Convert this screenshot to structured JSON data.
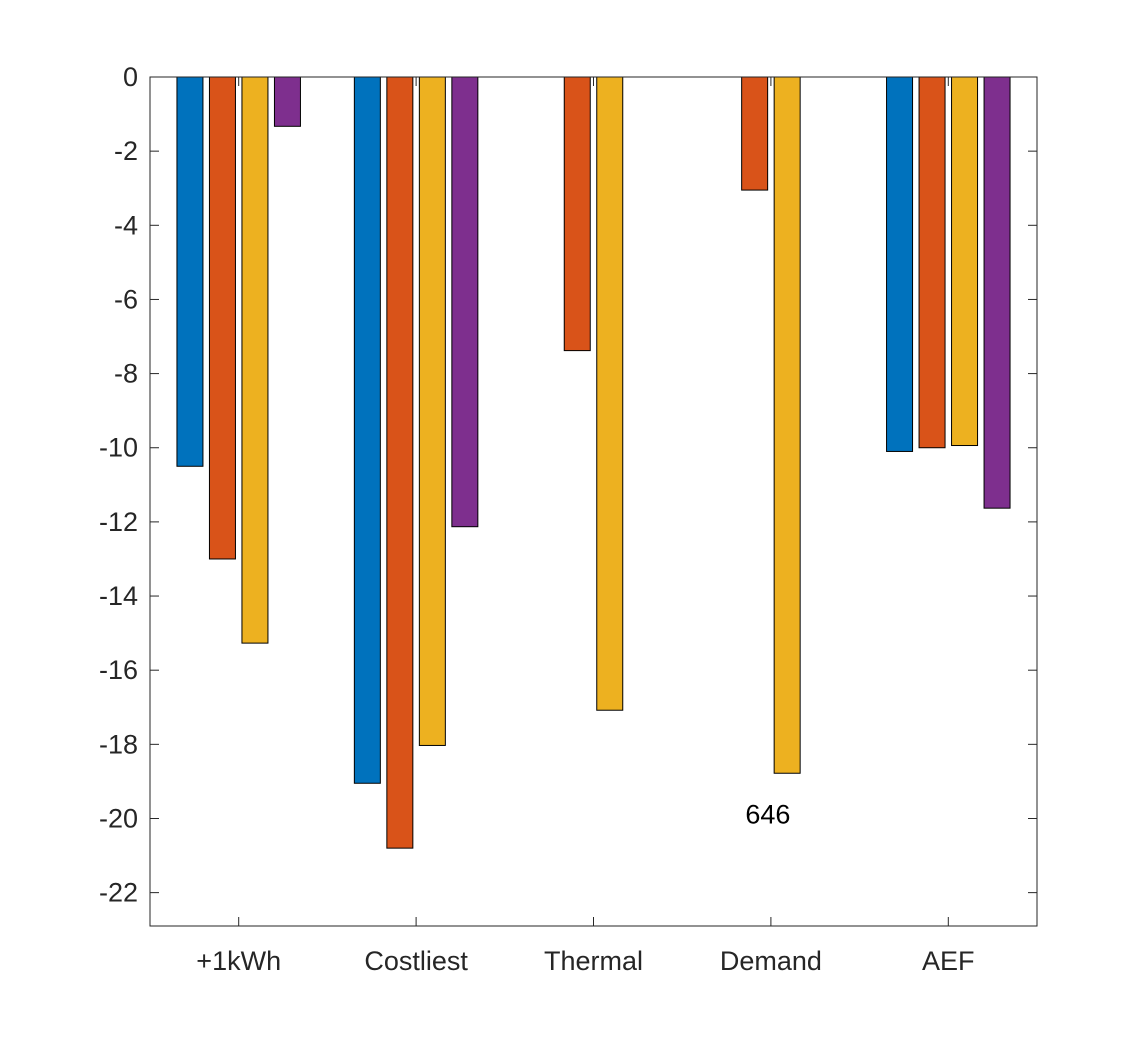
{
  "chart_data": {
    "type": "bar",
    "categories": [
      "+1kWh",
      "Costliest",
      "Thermal",
      "Demand",
      "AEF"
    ],
    "series": [
      {
        "color": "#0072BD",
        "values": [
          -10.5,
          -19.05,
          null,
          null,
          -10.1
        ]
      },
      {
        "color": "#D95319",
        "values": [
          -13.0,
          -20.8,
          -7.38,
          -3.05,
          -10.0
        ]
      },
      {
        "color": "#EDB120",
        "values": [
          -15.27,
          -18.03,
          -17.08,
          -18.78,
          -9.94
        ]
      },
      {
        "color": "#7E2F8E",
        "values": [
          -1.33,
          -12.13,
          null,
          null,
          -11.63
        ]
      }
    ],
    "ylim": [
      -22.9,
      0
    ],
    "yticks": [
      0,
      -2,
      -4,
      -6,
      -8,
      -10,
      -12,
      -14,
      -16,
      -18,
      -20,
      -22
    ],
    "ytick_labels": [
      "0",
      "-2",
      "-4",
      "-6",
      "-8",
      "-10",
      "-12",
      "-14",
      "-16",
      "-18",
      "-20",
      "-22"
    ],
    "grid": false,
    "legend": "none",
    "annotations": [
      {
        "text": "646",
        "category": "Demand",
        "y": -20
      }
    ]
  }
}
